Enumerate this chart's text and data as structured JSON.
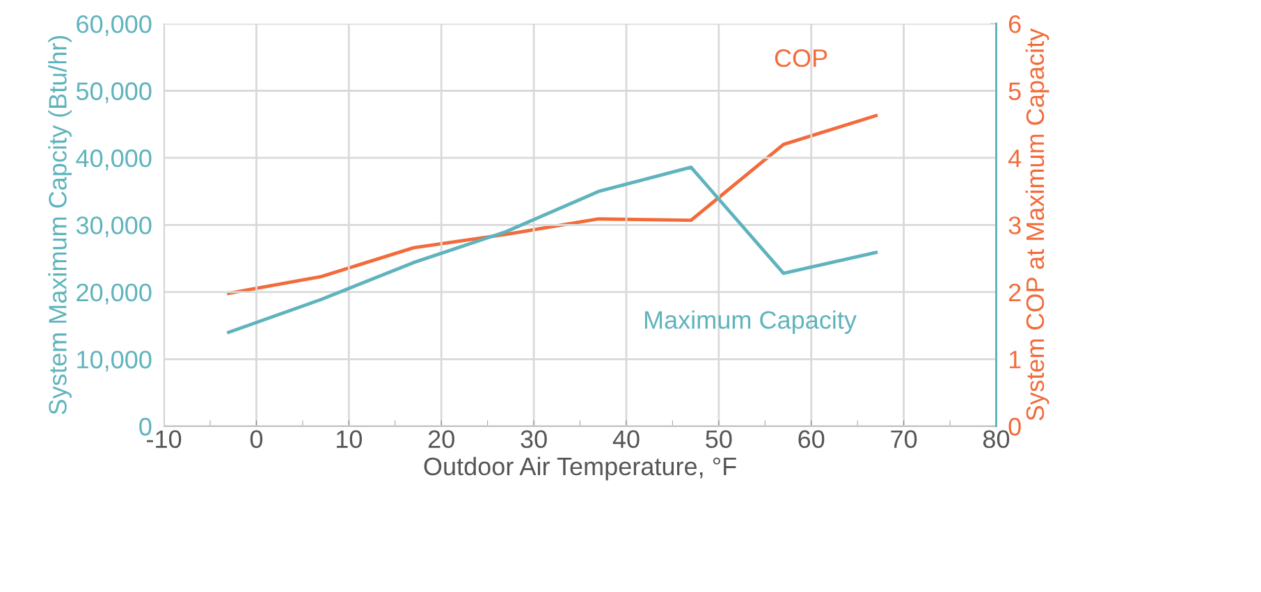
{
  "chart_data": {
    "type": "line",
    "xlabel": "Outdoor Air Temperature, °F",
    "ylabel": "System Maximum Capcity (Btu/hr)",
    "y2label": "System COP at Maximum Capacity",
    "x": [
      -3,
      7,
      17,
      27,
      37,
      47,
      57,
      67
    ],
    "series": [
      {
        "name": "Maximum Capacity",
        "color": "#5fb3bd",
        "values": [
          14000,
          18900,
          24400,
          29000,
          35000,
          38600,
          22800,
          25900
        ]
      },
      {
        "name": "COP",
        "color": "#f26b3a",
        "axis": "y2",
        "values": [
          1.98,
          2.23,
          2.66,
          2.86,
          3.09,
          3.07,
          4.2,
          4.63
        ]
      }
    ],
    "xlim": [
      -10,
      80
    ],
    "xticks": [
      -10,
      0,
      10,
      20,
      30,
      40,
      50,
      60,
      70,
      80
    ],
    "ylim": [
      0,
      60000
    ],
    "yticks": [
      0,
      {
        "value": 10000,
        "label": "10,000"
      },
      {
        "value": 20000,
        "label": "20,000"
      },
      {
        "value": 30000,
        "label": "30,000"
      },
      {
        "value": 40000,
        "label": "40,000"
      },
      {
        "value": 50000,
        "label": "50,000"
      },
      {
        "value": 60000,
        "label": "60,000"
      }
    ],
    "y2lim": [
      0,
      6
    ],
    "y2ticks": [
      0,
      1,
      2,
      3,
      4,
      5,
      6
    ],
    "grid": true,
    "legend": false,
    "marker": "none",
    "line_style": "solid"
  }
}
